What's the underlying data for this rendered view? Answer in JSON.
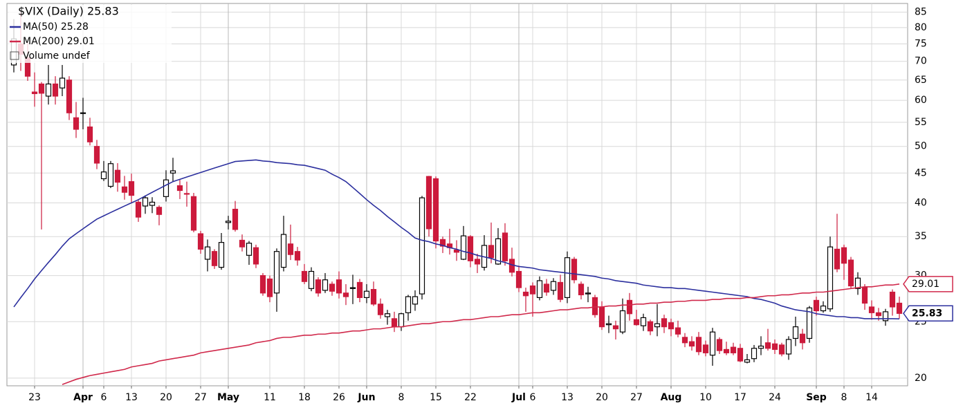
{
  "chart_data": {
    "type": "candlestick",
    "title": "$VIX (Daily) 25.83",
    "categories": [
      null,
      null,
      null,
      "23",
      null,
      null,
      null,
      null,
      null,
      null,
      "Apr",
      null,
      null,
      "6",
      null,
      null,
      null,
      "13",
      null,
      null,
      null,
      null,
      "20",
      null,
      null,
      null,
      null,
      "27",
      null,
      null,
      null,
      "May",
      null,
      null,
      null,
      null,
      null,
      "11",
      null,
      null,
      null,
      null,
      "18",
      null,
      null,
      null,
      null,
      "26",
      null,
      null,
      null,
      "Jun",
      null,
      null,
      null,
      null,
      "8",
      null,
      null,
      null,
      null,
      "15",
      null,
      null,
      null,
      null,
      "22",
      null,
      null,
      null,
      null,
      null,
      null,
      "Jul",
      null,
      "6",
      null,
      null,
      null,
      null,
      "13",
      null,
      null,
      null,
      null,
      "20",
      null,
      null,
      null,
      null,
      "27",
      null,
      null,
      null,
      null,
      "Aug",
      null,
      null,
      null,
      null,
      "10",
      null,
      null,
      null,
      null,
      "17",
      null,
      null,
      null,
      null,
      "24",
      null,
      null,
      null,
      null,
      null,
      "Sep",
      null,
      null,
      null,
      "8",
      null,
      null,
      null,
      "14",
      null,
      null,
      null,
      null
    ],
    "open": [
      69,
      75,
      71,
      62,
      64,
      61,
      64,
      63,
      65,
      56,
      57,
      54,
      50,
      44,
      42.7,
      45.5,
      42.6,
      43.5,
      40.1,
      39.5,
      39.6,
      39.3,
      41.0,
      45.0,
      42.8,
      41.5,
      41.0,
      35.4,
      32.0,
      33.0,
      31.0,
      37.0,
      39.0,
      34.5,
      32.5,
      33.5,
      30.0,
      29.6,
      28.0,
      31.0,
      34.0,
      33.0,
      30.5,
      28.5,
      29.5,
      28.3,
      29.0,
      29.5,
      28.0,
      28.5,
      29.2,
      27.5,
      28.4,
      26.8,
      25.5,
      25.3,
      24.5,
      25.9,
      26.8,
      27.9,
      44.4,
      44.0,
      34.6,
      34.0,
      33.2,
      32.0,
      35.0,
      32.0,
      31.0,
      33.8,
      31.4,
      35.5,
      32.0,
      30.5,
      28.1,
      28.8,
      27.5,
      29.0,
      28.3,
      29.2,
      27.5,
      32.0,
      29.0,
      27.9,
      27.5,
      26.5,
      24.7,
      24.6,
      24.0,
      27.2,
      25.2,
      24.6,
      25.0,
      24.5,
      25.3,
      24.9,
      24.4,
      23.5,
      23.1,
      23.5,
      22.8,
      21.9,
      23.3,
      22.4,
      22.6,
      22.5,
      21.3,
      21.6,
      22.5,
      23.0,
      22.9,
      22.8,
      22.0,
      23.4,
      23.8,
      23.4,
      27.2,
      26.1,
      26.3,
      33.3,
      33.5,
      31.9,
      28.5,
      28.6,
      26.5,
      25.9,
      25.1,
      28.1,
      26.9
    ],
    "high": [
      82.7,
      85,
      75.5,
      67,
      64.5,
      69,
      66,
      69,
      66,
      59.6,
      60.6,
      56,
      51.3,
      47.2,
      47.2,
      46.8,
      44.5,
      44.9,
      40.5,
      41.2,
      40.9,
      39.6,
      45.5,
      47.8,
      43.8,
      43.5,
      41.6,
      35.8,
      34.6,
      33.3,
      35.5,
      38.0,
      40.3,
      35.3,
      34.4,
      33.9,
      30.3,
      30.0,
      33.4,
      38.0,
      36.7,
      33.6,
      31.4,
      31.0,
      29.8,
      30.3,
      29.3,
      30.5,
      29.0,
      30.1,
      29.6,
      29.0,
      29.3,
      27.4,
      26.2,
      26.0,
      25.9,
      27.8,
      28.3,
      41.1,
      44.5,
      44.4,
      35.0,
      36.1,
      34.5,
      36.5,
      35.2,
      32.7,
      35.2,
      37.0,
      36.2,
      36.9,
      33.5,
      31.2,
      28.6,
      29.2,
      29.9,
      29.6,
      29.7,
      30.1,
      33.0,
      32.3,
      29.3,
      28.7,
      27.8,
      27.1,
      25.6,
      25.1,
      27.4,
      28.0,
      26.2,
      25.8,
      25.2,
      26.8,
      25.7,
      25.3,
      25.1,
      23.9,
      23.6,
      24.0,
      23.2,
      24.4,
      23.5,
      23.1,
      23.0,
      22.9,
      22.0,
      22.8,
      23.6,
      24.3,
      23.3,
      23.0,
      23.6,
      25.5,
      24.3,
      26.6,
      27.6,
      27.1,
      35.0,
      38.3,
      33.9,
      32.3,
      30.4,
      29.0,
      27.2,
      26.4,
      26.3,
      28.4,
      27.6
    ],
    "low": [
      67,
      67.4,
      64.8,
      58.5,
      36,
      59,
      59,
      61,
      55.5,
      51.7,
      53.5,
      50.2,
      45.7,
      43.6,
      42.4,
      41.8,
      40.5,
      39.9,
      37.1,
      38.3,
      38.4,
      36.6,
      40.2,
      43.5,
      40.6,
      39.4,
      35.6,
      32.7,
      30.5,
      30.8,
      30.7,
      36.0,
      35.7,
      33.0,
      31.3,
      30.9,
      27.7,
      27.0,
      26.0,
      30.5,
      31.9,
      31.2,
      29.0,
      28.2,
      27.6,
      28.0,
      27.7,
      27.4,
      26.7,
      26.8,
      27.0,
      26.9,
      26.6,
      25.3,
      24.7,
      24.0,
      24.1,
      25.1,
      26.1,
      27.3,
      35.0,
      33.4,
      32.8,
      32.6,
      31.8,
      31.9,
      31.0,
      30.3,
      30.6,
      31.5,
      31.3,
      31.2,
      29.9,
      28.1,
      26.0,
      25.5,
      27.2,
      27.7,
      27.8,
      27.0,
      26.9,
      29.1,
      27.3,
      27.0,
      25.4,
      24.2,
      23.9,
      23.3,
      23.8,
      25.1,
      24.6,
      24.1,
      23.7,
      23.6,
      23.9,
      23.6,
      23.5,
      22.6,
      22.3,
      21.9,
      21.8,
      21.0,
      22.0,
      21.9,
      21.9,
      21.3,
      21.2,
      21.3,
      21.9,
      22.3,
      22.0,
      21.8,
      21.5,
      22.7,
      22.4,
      23.0,
      25.6,
      25.9,
      26.0,
      30.4,
      29.5,
      28.5,
      27.8,
      26.2,
      25.2,
      25.1,
      24.6,
      25.6,
      25.3
    ],
    "close": [
      76.5,
      72.0,
      66.0,
      61.6,
      61.7,
      64.0,
      61.0,
      65.5,
      57.1,
      53.5,
      57.1,
      50.9,
      46.8,
      45.2,
      46.7,
      43.4,
      41.7,
      41.2,
      37.8,
      40.8,
      40.1,
      38.2,
      43.8,
      45.4,
      42.0,
      41.4,
      35.9,
      33.3,
      33.6,
      31.2,
      34.2,
      37.2,
      36.0,
      33.6,
      34.1,
      31.4,
      28.0,
      27.6,
      33.0,
      35.3,
      32.6,
      31.9,
      29.3,
      30.5,
      28.0,
      29.5,
      28.2,
      28.0,
      27.6,
      28.6,
      27.5,
      28.2,
      26.8,
      25.7,
      25.8,
      24.5,
      25.8,
      27.6,
      27.6,
      40.8,
      36.1,
      34.4,
      33.7,
      33.5,
      32.9,
      35.1,
      31.8,
      31.4,
      33.8,
      32.2,
      34.7,
      31.8,
      30.4,
      28.6,
      27.7,
      27.9,
      29.4,
      28.1,
      29.3,
      27.3,
      32.2,
      29.5,
      27.8,
      28.0,
      25.7,
      24.5,
      24.8,
      24.3,
      26.1,
      25.8,
      24.7,
      25.4,
      24.1,
      24.8,
      24.5,
      24.3,
      23.8,
      23.0,
      22.7,
      22.2,
      22.1,
      24.0,
      22.3,
      22.1,
      22.1,
      21.4,
      21.5,
      22.5,
      22.7,
      22.5,
      22.4,
      22.0,
      23.3,
      24.5,
      23.0,
      26.4,
      26.1,
      26.6,
      33.6,
      30.8,
      31.5,
      28.8,
      29.7,
      26.9,
      25.9,
      25.6,
      26.0,
      26.5,
      25.83
    ],
    "up_color": "#000000",
    "down_color": "#cc1a3c",
    "series": [
      {
        "name": "MA(50) 25.28",
        "color": "#2b2f9e",
        "values": [
          26.5,
          27.5,
          28.5,
          29.6,
          30.6,
          31.6,
          32.6,
          33.7,
          34.7,
          35.4,
          36.1,
          36.8,
          37.5,
          38.0,
          38.5,
          39.0,
          39.5,
          40.0,
          40.5,
          41.1,
          41.7,
          42.3,
          42.9,
          43.5,
          43.9,
          44.3,
          44.7,
          45.1,
          45.5,
          45.9,
          46.3,
          46.7,
          47.1,
          47.2,
          47.3,
          47.4,
          47.2,
          47.1,
          46.9,
          46.8,
          46.7,
          46.5,
          46.4,
          46.1,
          45.8,
          45.5,
          44.8,
          44.2,
          43.5,
          42.5,
          41.5,
          40.5,
          39.6,
          38.8,
          37.9,
          37.1,
          36.3,
          35.6,
          34.8,
          34.5,
          34.3,
          34.0,
          33.8,
          33.5,
          33.3,
          33.0,
          32.8,
          32.5,
          32.3,
          32.1,
          31.8,
          31.6,
          31.3,
          31.1,
          31.0,
          30.9,
          30.7,
          30.6,
          30.5,
          30.4,
          30.3,
          30.2,
          30.1,
          30.0,
          29.9,
          29.7,
          29.6,
          29.4,
          29.3,
          29.2,
          29.1,
          28.9,
          28.8,
          28.7,
          28.6,
          28.6,
          28.5,
          28.5,
          28.4,
          28.3,
          28.2,
          28.1,
          28.0,
          27.9,
          27.8,
          27.7,
          27.6,
          27.4,
          27.3,
          27.1,
          26.9,
          26.6,
          26.4,
          26.2,
          26.1,
          26.0,
          25.8,
          25.7,
          25.6,
          25.5,
          25.5,
          25.4,
          25.4,
          25.3,
          25.3,
          25.3,
          25.3,
          25.3,
          25.28
        ]
      },
      {
        "name": "MA(200) 29.01",
        "color": "#d0284a",
        "values": [
          null,
          null,
          null,
          null,
          null,
          null,
          null,
          19.5,
          19.7,
          19.9,
          20.05,
          20.2,
          20.3,
          20.4,
          20.5,
          20.6,
          20.7,
          20.9,
          21.0,
          21.1,
          21.2,
          21.4,
          21.5,
          21.6,
          21.7,
          21.8,
          21.9,
          22.1,
          22.2,
          22.3,
          22.4,
          22.5,
          22.6,
          22.7,
          22.8,
          23.0,
          23.1,
          23.2,
          23.4,
          23.5,
          23.5,
          23.6,
          23.7,
          23.7,
          23.8,
          23.8,
          23.9,
          23.9,
          24.0,
          24.1,
          24.1,
          24.2,
          24.3,
          24.3,
          24.4,
          24.5,
          24.5,
          24.6,
          24.7,
          24.8,
          24.8,
          24.9,
          25.0,
          25.0,
          25.1,
          25.2,
          25.2,
          25.3,
          25.4,
          25.5,
          25.5,
          25.6,
          25.7,
          25.7,
          25.8,
          25.9,
          25.9,
          26.0,
          26.1,
          26.2,
          26.2,
          26.3,
          26.4,
          26.4,
          26.5,
          26.5,
          26.6,
          26.6,
          26.7,
          26.7,
          26.8,
          26.8,
          26.9,
          26.9,
          27.0,
          27.0,
          27.1,
          27.1,
          27.2,
          27.2,
          27.2,
          27.3,
          27.3,
          27.4,
          27.4,
          27.4,
          27.5,
          27.5,
          27.6,
          27.7,
          27.7,
          27.8,
          27.8,
          27.9,
          28.0,
          28.0,
          28.1,
          28.1,
          28.2,
          28.3,
          28.4,
          28.5,
          28.6,
          28.7,
          28.7,
          28.8,
          28.9,
          28.9,
          29.01
        ]
      }
    ],
    "volume_legend": "Volume undef",
    "ylim": [
      19.4,
      88
    ],
    "yticks": [
      20,
      25,
      30,
      35,
      40,
      45,
      50,
      55,
      60,
      65,
      70,
      75,
      80,
      85
    ],
    "log_scale": true,
    "grid": true
  }
}
